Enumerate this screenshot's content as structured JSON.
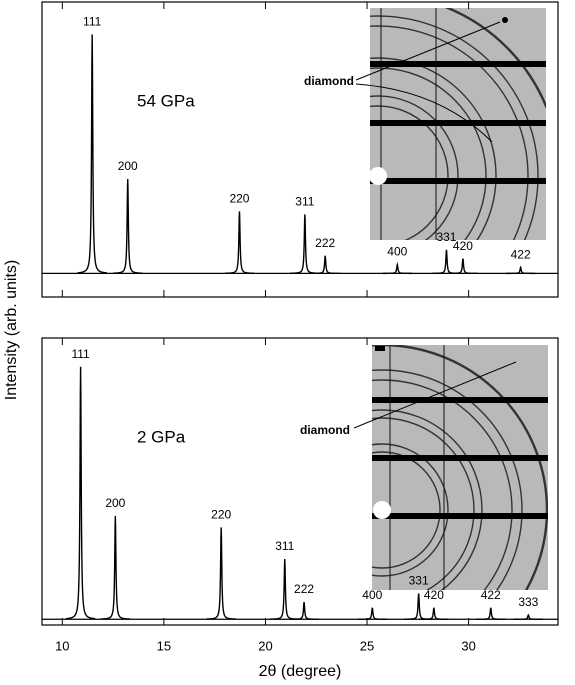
{
  "chart_data": [
    {
      "type": "line",
      "annotation": "54 GPa",
      "inset_label": "diamond",
      "ylabel": "Intensity (arb. units)",
      "categories": [
        "111",
        "200",
        "220",
        "311",
        "222",
        "400",
        "331",
        "420",
        "422"
      ],
      "x": [
        11.47,
        13.22,
        18.72,
        21.94,
        22.94,
        26.49,
        28.91,
        29.72,
        32.56
      ],
      "values": [
        8.1,
        3.2,
        2.1,
        2.0,
        0.6,
        0.3,
        0.8,
        0.5,
        0.2
      ],
      "color": "#000000",
      "xlim": [
        9,
        34.4
      ],
      "ylim": [
        -0.8,
        9.2
      ]
    },
    {
      "type": "line",
      "annotation": "2 GPa",
      "inset_label": "diamond",
      "xlabel": "2θ (degree)",
      "categories": [
        "111",
        "200",
        "220",
        "311",
        "222",
        "400",
        "331",
        "420",
        "422",
        "333"
      ],
      "x": [
        10.9,
        12.61,
        17.82,
        20.95,
        21.9,
        25.26,
        27.54,
        28.29,
        31.09,
        32.94
      ],
      "values": [
        8.8,
        3.6,
        3.2,
        2.1,
        0.6,
        0.4,
        0.9,
        0.4,
        0.4,
        0.15
      ],
      "color": "#000000",
      "xlim": [
        9,
        34.4
      ],
      "ylim": [
        -0.2,
        9.8
      ],
      "xticks": [
        10,
        15,
        20,
        25,
        30
      ]
    }
  ]
}
